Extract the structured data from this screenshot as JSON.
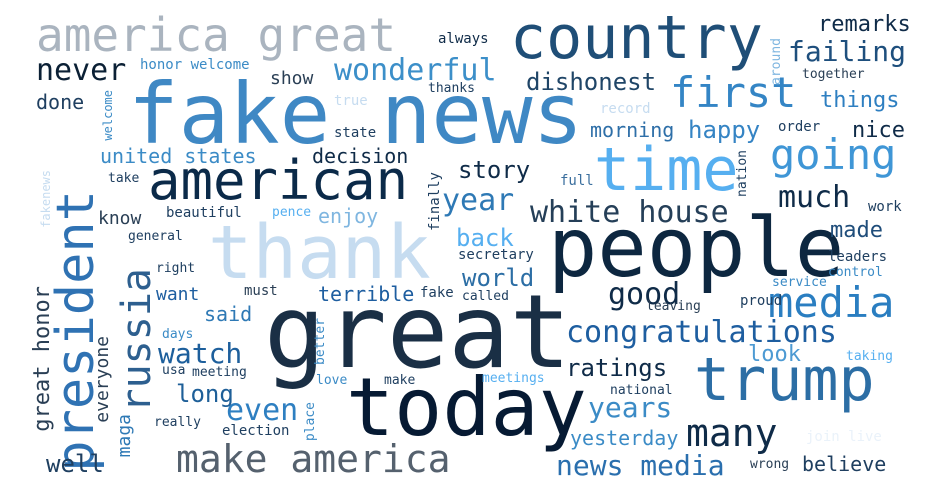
{
  "words": [
    {
      "text": "great",
      "color": "#1a2f45"
    },
    {
      "text": "fake news",
      "color": "#3f88c4"
    },
    {
      "text": "people",
      "color": "#0d2740"
    },
    {
      "text": "today",
      "color": "#061a33"
    },
    {
      "text": "thank",
      "color": "#c6dcf0"
    },
    {
      "text": "country",
      "color": "#1f4e77"
    },
    {
      "text": "american",
      "color": "#0b2a49"
    },
    {
      "text": "trump",
      "color": "#2c6ea5"
    },
    {
      "text": "america great",
      "color": "#aab4bf"
    },
    {
      "text": "president",
      "color": "#2f72b3"
    },
    {
      "text": "time",
      "color": "#56aff0"
    },
    {
      "text": "make america",
      "color": "#55616e"
    },
    {
      "text": "media",
      "color": "#2a7ec1"
    },
    {
      "text": "russia",
      "color": "#2d5f8f"
    },
    {
      "text": "going",
      "color": "#3f96d6"
    },
    {
      "text": "first",
      "color": "#3485c5"
    },
    {
      "text": "many",
      "color": "#0f2b48"
    },
    {
      "text": "wonderful",
      "color": "#3c8fc9"
    },
    {
      "text": "congratulations",
      "color": "#1e5ea0"
    },
    {
      "text": "white house",
      "color": "#253f58"
    },
    {
      "text": "much",
      "color": "#0f2b48"
    },
    {
      "text": "never",
      "color": "#0b2035"
    },
    {
      "text": "failing",
      "color": "#1e4f7d"
    },
    {
      "text": "remarks",
      "color": "#0f2b48"
    },
    {
      "text": "dishonest",
      "color": "#1f4567"
    },
    {
      "text": "story",
      "color": "#0f2b48"
    },
    {
      "text": "year",
      "color": "#2e79b5"
    },
    {
      "text": "good",
      "color": "#0f2b48"
    },
    {
      "text": "watch",
      "color": "#1d5f9c"
    },
    {
      "text": "even",
      "color": "#2e7fc1"
    },
    {
      "text": "years",
      "color": "#3b8bc6"
    },
    {
      "text": "news media",
      "color": "#2a6fae"
    },
    {
      "text": "long",
      "color": "#1e5f98"
    },
    {
      "text": "ratings",
      "color": "#0f2b48"
    },
    {
      "text": "look",
      "color": "#4d9ad3"
    },
    {
      "text": "believe",
      "color": "#1f3f60"
    },
    {
      "text": "yesterday",
      "color": "#3b8bc6"
    },
    {
      "text": "well",
      "color": "#1f3f60"
    },
    {
      "text": "happy",
      "color": "#3584c4"
    },
    {
      "text": "things",
      "color": "#2e7fc1"
    },
    {
      "text": "nice",
      "color": "#0f2b48"
    },
    {
      "text": "made",
      "color": "#1f4d7a"
    },
    {
      "text": "world",
      "color": "#2c6ea5"
    },
    {
      "text": "back",
      "color": "#56aff0"
    },
    {
      "text": "decision",
      "color": "#0f2b48"
    },
    {
      "text": "united states",
      "color": "#3b8bc6"
    },
    {
      "text": "morning",
      "color": "#2e6fa8"
    },
    {
      "text": "done",
      "color": "#1f3f60"
    },
    {
      "text": "show",
      "color": "#2a3f55"
    },
    {
      "text": "know",
      "color": "#2a3f55"
    },
    {
      "text": "want",
      "color": "#1e5ea0"
    },
    {
      "text": "said",
      "color": "#2e79b5"
    },
    {
      "text": "terrible",
      "color": "#1e5ea0"
    },
    {
      "text": "enjoy",
      "color": "#7fb6e0"
    },
    {
      "text": "great honor",
      "color": "#2a3f55"
    },
    {
      "text": "everyone",
      "color": "#2a3f55"
    },
    {
      "text": "maga",
      "color": "#2e79b5"
    },
    {
      "text": "honor welcome",
      "color": "#3b8bc6"
    },
    {
      "text": "always",
      "color": "#0f2b48"
    },
    {
      "text": "thanks",
      "color": "#1f3f60"
    },
    {
      "text": "true",
      "color": "#c6dcf0"
    },
    {
      "text": "state",
      "color": "#1f3f60"
    },
    {
      "text": "record",
      "color": "#c6dcf0"
    },
    {
      "text": "order",
      "color": "#1f3f60"
    },
    {
      "text": "together",
      "color": "#2a3f55"
    },
    {
      "text": "around",
      "color": "#7fb6e0"
    },
    {
      "text": "nation",
      "color": "#1f3f60"
    },
    {
      "text": "full",
      "color": "#3b6f9e"
    },
    {
      "text": "finally",
      "color": "#1f3f60"
    },
    {
      "text": "work",
      "color": "#1f3f60"
    },
    {
      "text": "beautiful",
      "color": "#1f3f60"
    },
    {
      "text": "pence",
      "color": "#56aff0"
    },
    {
      "text": "take",
      "color": "#1f3f60"
    },
    {
      "text": "welcome",
      "color": "#3b8bc6"
    },
    {
      "text": "fakenews",
      "color": "#c6dcf0"
    },
    {
      "text": "general",
      "color": "#1f3f60"
    },
    {
      "text": "right",
      "color": "#1f3f60"
    },
    {
      "text": "secretary",
      "color": "#1f3f60"
    },
    {
      "text": "must",
      "color": "#2a3f55"
    },
    {
      "text": "fake",
      "color": "#1f3f60"
    },
    {
      "text": "called",
      "color": "#1f3f60"
    },
    {
      "text": "leaving",
      "color": "#2a3f55"
    },
    {
      "text": "proud",
      "color": "#1f3f60"
    },
    {
      "text": "leaders",
      "color": "#1f3f60"
    },
    {
      "text": "control",
      "color": "#3b8bc6"
    },
    {
      "text": "service",
      "color": "#3b8bc6"
    },
    {
      "text": "days",
      "color": "#3b8bc6"
    },
    {
      "text": "usa",
      "color": "#1f3f60"
    },
    {
      "text": "meeting",
      "color": "#1f3f60"
    },
    {
      "text": "better",
      "color": "#3b8bc6"
    },
    {
      "text": "love",
      "color": "#3b8bc6"
    },
    {
      "text": "make",
      "color": "#1f3f60"
    },
    {
      "text": "meetings",
      "color": "#56aff0"
    },
    {
      "text": "national",
      "color": "#1f3f60"
    },
    {
      "text": "taking",
      "color": "#56aff0"
    },
    {
      "text": "really",
      "color": "#1f3f60"
    },
    {
      "text": "place",
      "color": "#3b8bc6"
    },
    {
      "text": "election",
      "color": "#1f3f60"
    },
    {
      "text": "wrong",
      "color": "#2a3f55"
    },
    {
      "text": "join live",
      "color": "#eaf2fa"
    }
  ]
}
